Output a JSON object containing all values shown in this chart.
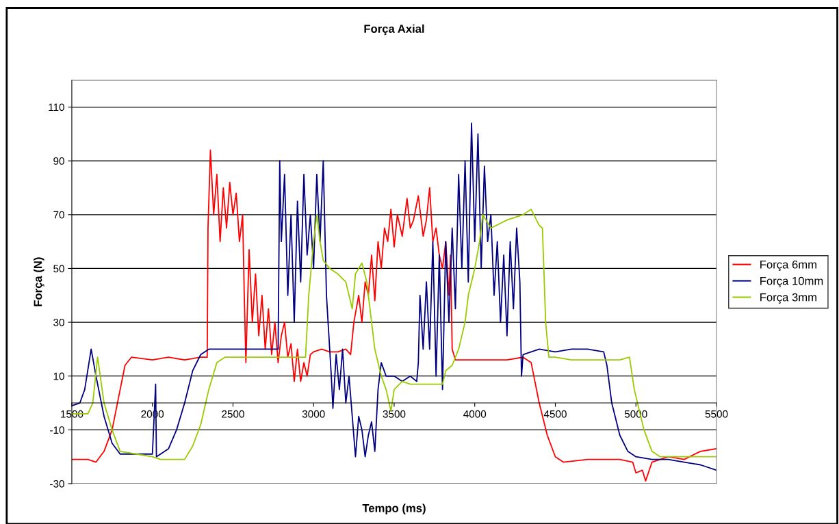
{
  "chart_data": {
    "type": "line",
    "title": "Força Axial",
    "xlabel": "Tempo (ms)",
    "ylabel": "Força (N)",
    "xlim": [
      1500,
      5500
    ],
    "xticks": [
      1500,
      2000,
      2500,
      3000,
      3500,
      4000,
      4500,
      5000,
      5500
    ],
    "ylim": [
      -30,
      120
    ],
    "yticks": [
      -30,
      -10,
      10,
      30,
      50,
      70,
      90,
      110
    ],
    "grid": "y",
    "legend": "right",
    "marker": "none",
    "line_style": "solid",
    "series": [
      {
        "name": "Força 6mm",
        "color": "#ff0000",
        "x": [
          1500,
          1600,
          1650,
          1700,
          1750,
          1800,
          1830,
          1870,
          2000,
          2100,
          2200,
          2300,
          2340,
          2345,
          2360,
          2380,
          2400,
          2420,
          2440,
          2460,
          2480,
          2500,
          2520,
          2540,
          2560,
          2570,
          2580,
          2600,
          2620,
          2640,
          2660,
          2680,
          2700,
          2720,
          2740,
          2760,
          2780,
          2800,
          2820,
          2840,
          2860,
          2880,
          2900,
          2920,
          2940,
          2960,
          2980,
          3000,
          3050,
          3100,
          3150,
          3200,
          3230,
          3250,
          3280,
          3300,
          3320,
          3340,
          3360,
          3380,
          3400,
          3420,
          3440,
          3460,
          3480,
          3500,
          3520,
          3550,
          3580,
          3600,
          3620,
          3650,
          3680,
          3700,
          3720,
          3740,
          3760,
          3780,
          3800,
          3820,
          3840,
          3850,
          3860,
          3880,
          3900,
          4000,
          4100,
          4200,
          4300,
          4350,
          4400,
          4450,
          4500,
          4550,
          4700,
          4900,
          4980,
          5000,
          5040,
          5060,
          5100,
          5200,
          5300,
          5400,
          5500
        ],
        "values": [
          -21,
          -21,
          -22,
          -18,
          -10,
          5,
          14,
          17,
          16,
          17,
          16,
          17,
          17,
          65,
          94,
          70,
          85,
          60,
          80,
          65,
          82,
          70,
          78,
          60,
          70,
          40,
          15,
          57,
          30,
          48,
          25,
          40,
          20,
          35,
          18,
          30,
          15,
          25,
          30,
          17,
          22,
          8,
          20,
          8,
          15,
          10,
          18,
          19,
          20,
          19,
          19,
          20,
          18,
          30,
          40,
          30,
          45,
          40,
          55,
          38,
          60,
          50,
          65,
          60,
          72,
          58,
          70,
          62,
          76,
          65,
          68,
          77,
          62,
          68,
          80,
          60,
          65,
          55,
          50,
          60,
          40,
          55,
          20,
          16,
          16,
          16,
          16,
          16,
          17,
          15,
          0,
          -12,
          -20,
          -22,
          -21,
          -21,
          -22,
          -26,
          -25,
          -29,
          -22,
          -20,
          -21,
          -18,
          -17
        ]
      },
      {
        "name": "Força 10mm",
        "color": "#000080",
        "x": [
          1500,
          1550,
          1580,
          1620,
          1650,
          1700,
          1750,
          1800,
          1900,
          2000,
          2020,
          2025,
          2100,
          2150,
          2200,
          2250,
          2300,
          2350,
          2400,
          2500,
          2600,
          2700,
          2780,
          2790,
          2800,
          2820,
          2840,
          2860,
          2880,
          2900,
          2920,
          2940,
          2960,
          2980,
          3000,
          3020,
          3040,
          3060,
          3080,
          3100,
          3110,
          3120,
          3140,
          3160,
          3180,
          3200,
          3220,
          3240,
          3260,
          3280,
          3300,
          3320,
          3340,
          3360,
          3380,
          3400,
          3420,
          3450,
          3500,
          3550,
          3600,
          3640,
          3650,
          3660,
          3680,
          3700,
          3720,
          3740,
          3760,
          3780,
          3800,
          3820,
          3840,
          3860,
          3880,
          3900,
          3920,
          3940,
          3960,
          3980,
          4000,
          4020,
          4040,
          4060,
          4080,
          4100,
          4120,
          4140,
          4160,
          4180,
          4200,
          4220,
          4240,
          4260,
          4280,
          4290,
          4300,
          4400,
          4500,
          4600,
          4700,
          4800,
          4820,
          4850,
          4900,
          4950,
          5000,
          5100,
          5200,
          5300,
          5400,
          5500
        ],
        "values": [
          -1,
          0,
          5,
          20,
          10,
          -5,
          -15,
          -19,
          -19,
          -19,
          7,
          -20,
          -17,
          -10,
          0,
          12,
          18,
          20,
          20,
          20,
          20,
          20,
          20,
          90,
          60,
          85,
          40,
          70,
          30,
          75,
          45,
          85,
          55,
          70,
          50,
          85,
          60,
          90,
          40,
          20,
          10,
          -2,
          18,
          5,
          20,
          0,
          10,
          -5,
          -20,
          -5,
          -10,
          -20,
          -12,
          -7,
          -18,
          5,
          15,
          10,
          10,
          8,
          10,
          8,
          15,
          40,
          20,
          45,
          20,
          60,
          10,
          55,
          5,
          60,
          30,
          65,
          35,
          85,
          50,
          90,
          45,
          104,
          60,
          100,
          50,
          88,
          60,
          70,
          40,
          60,
          30,
          55,
          25,
          60,
          35,
          65,
          45,
          10,
          18,
          20,
          19,
          20,
          20,
          19,
          14,
          0,
          -12,
          -18,
          -20,
          -21,
          -21,
          -22,
          -23,
          -25
        ]
      },
      {
        "name": "Força 3mm",
        "color": "#99cc00",
        "x": [
          1500,
          1600,
          1630,
          1660,
          1700,
          1750,
          1800,
          1900,
          2000,
          2050,
          2150,
          2200,
          2250,
          2300,
          2350,
          2400,
          2450,
          2500,
          2600,
          2700,
          2800,
          2900,
          2950,
          2970,
          3000,
          3020,
          3040,
          3060,
          3100,
          3150,
          3200,
          3240,
          3260,
          3300,
          3330,
          3360,
          3380,
          3420,
          3450,
          3480,
          3500,
          3550,
          3600,
          3700,
          3780,
          3800,
          3820,
          3860,
          3900,
          3940,
          3960,
          4000,
          4030,
          4050,
          4100,
          4200,
          4300,
          4350,
          4400,
          4420,
          4440,
          4460,
          4500,
          4600,
          4700,
          4800,
          4900,
          4960,
          4990,
          5050,
          5100,
          5150,
          5300,
          5500
        ],
        "values": [
          -4,
          -4,
          0,
          17,
          0,
          -10,
          -18,
          -19,
          -20,
          -21,
          -21,
          -21,
          -16,
          -8,
          5,
          15,
          17,
          17,
          17,
          17,
          17,
          17,
          17,
          40,
          60,
          70,
          60,
          53,
          50,
          48,
          45,
          35,
          48,
          52,
          45,
          30,
          20,
          10,
          5,
          -3,
          5,
          8,
          7,
          7,
          7,
          7,
          12,
          14,
          20,
          30,
          40,
          50,
          60,
          70,
          65,
          68,
          70,
          72,
          66,
          65,
          30,
          17,
          17,
          16,
          16,
          16,
          16,
          17,
          5,
          -10,
          -18,
          -20,
          -20,
          -20
        ]
      }
    ]
  }
}
